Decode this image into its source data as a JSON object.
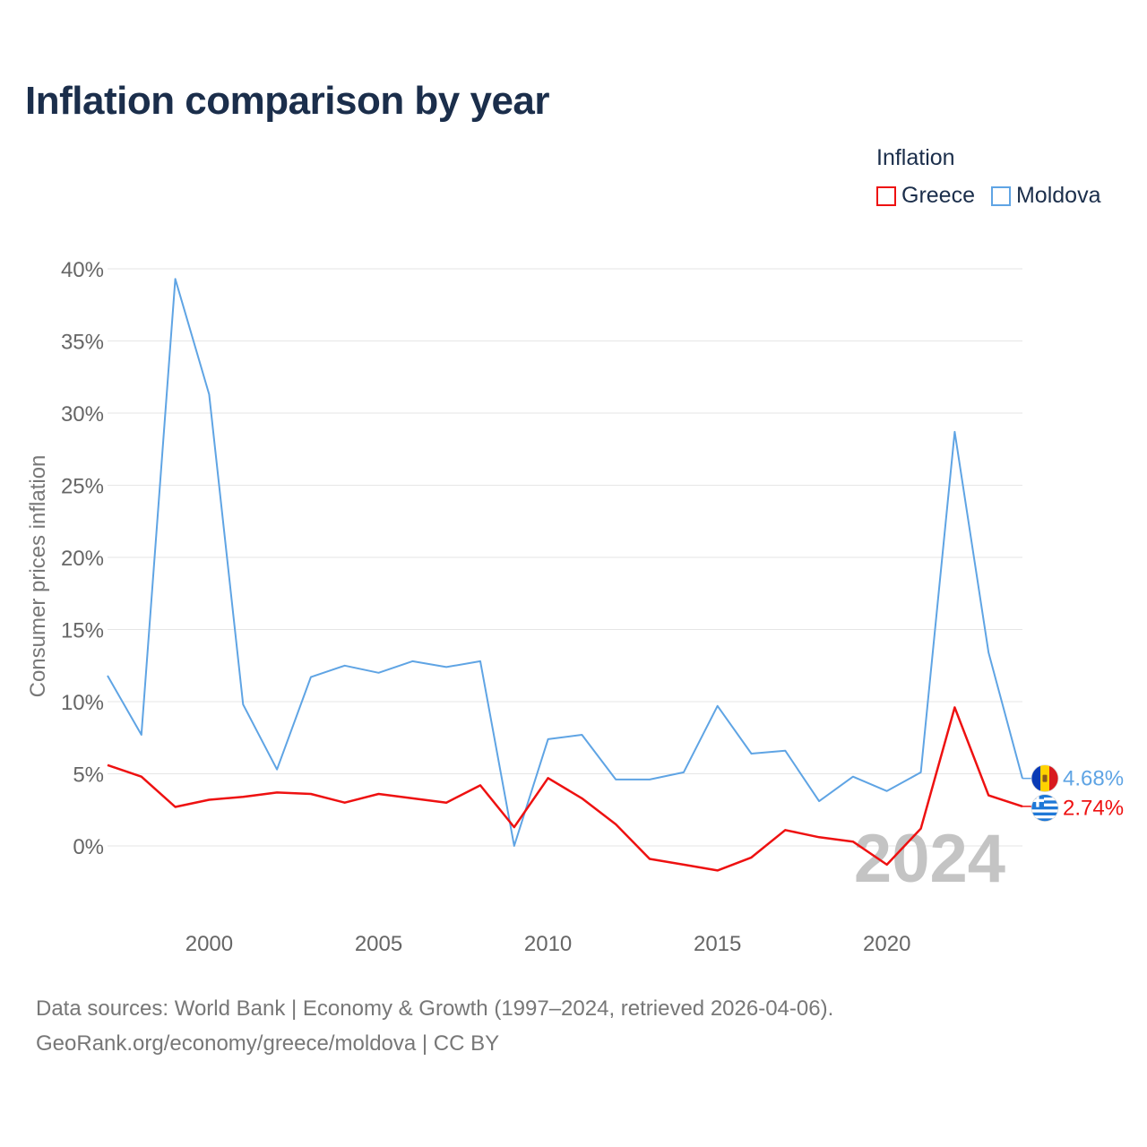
{
  "chart_data": {
    "type": "line",
    "title": "Inflation comparison by year",
    "legend_title": "Inflation",
    "ylabel": "Consumer prices inflation",
    "xlabel": "",
    "x": [
      1997,
      1998,
      1999,
      2000,
      2001,
      2002,
      2003,
      2004,
      2005,
      2006,
      2007,
      2008,
      2009,
      2010,
      2011,
      2012,
      2013,
      2014,
      2015,
      2016,
      2017,
      2018,
      2019,
      2020,
      2021,
      2022,
      2023,
      2024
    ],
    "x_ticks": [
      2000,
      2005,
      2010,
      2015,
      2020
    ],
    "x_tick_labels": [
      "2000",
      "2005",
      "2010",
      "2015",
      "2020"
    ],
    "xlim": [
      1997,
      2024
    ],
    "ylim": [
      -4.5,
      40
    ],
    "y_ticks": [
      0,
      5,
      10,
      15,
      20,
      25,
      30,
      35,
      40
    ],
    "y_tick_labels": [
      "0%",
      "5%",
      "10%",
      "15%",
      "20%",
      "25%",
      "30%",
      "35%",
      "40%"
    ],
    "grid": true,
    "series": [
      {
        "name": "Greece",
        "color": "#ee1111",
        "flag": "greece-flag",
        "end_label": "2.74%",
        "values": [
          5.6,
          4.8,
          2.7,
          3.2,
          3.4,
          3.7,
          3.6,
          3.0,
          3.6,
          3.3,
          3.0,
          4.2,
          1.3,
          4.7,
          3.3,
          1.5,
          -0.9,
          -1.3,
          -1.7,
          -0.8,
          1.1,
          0.6,
          0.3,
          -1.3,
          1.2,
          9.6,
          3.5,
          2.74
        ]
      },
      {
        "name": "Moldova",
        "color": "#5fa4e4",
        "flag": "moldova-flag",
        "end_label": "4.68%",
        "values": [
          11.8,
          7.7,
          39.3,
          31.3,
          9.8,
          5.3,
          11.7,
          12.5,
          12.0,
          12.8,
          12.4,
          12.8,
          0.0,
          7.4,
          7.7,
          4.6,
          4.6,
          5.1,
          9.7,
          6.4,
          6.6,
          3.1,
          4.8,
          3.8,
          5.1,
          28.7,
          13.4,
          4.68
        ]
      }
    ],
    "watermark_year": "2024"
  },
  "footer": {
    "source_line": "Data sources: World Bank | Economy & Growth (1997–2024, retrieved 2026-04-06).",
    "attribution_line": "GeoRank.org/economy/greece/moldova | CC BY"
  }
}
